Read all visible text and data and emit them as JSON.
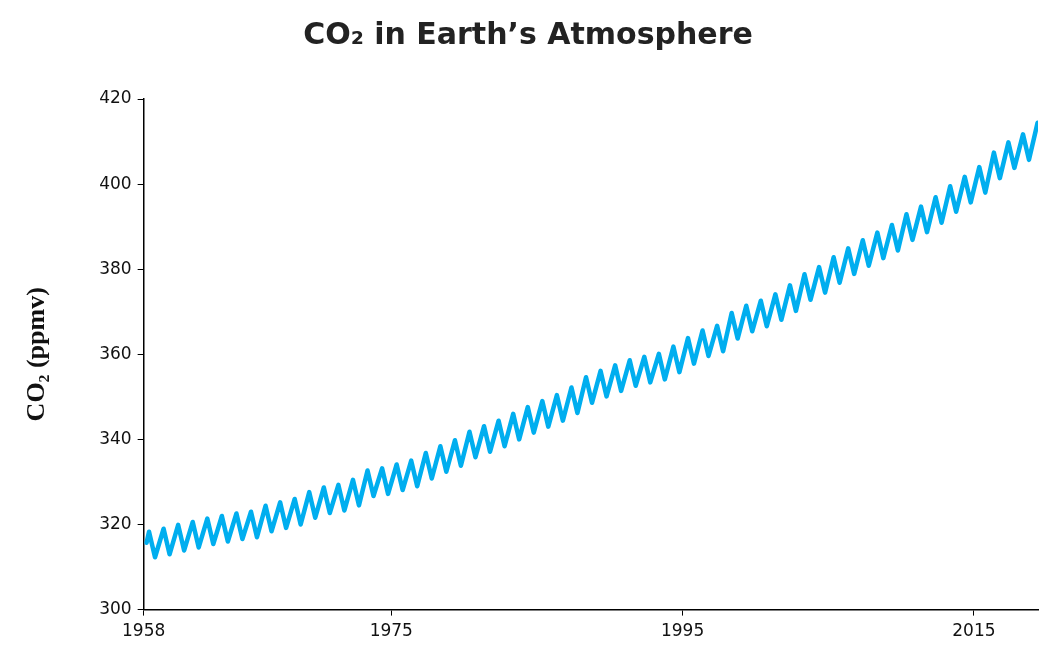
{
  "chart_data": {
    "type": "line",
    "title": "CO₂ in Earth’s Atmosphere",
    "ylabel": "CO₂ (ppmv)",
    "xlim": [
      1958,
      2019.4
    ],
    "xticks": [
      1958,
      1975,
      1995,
      2015
    ],
    "ylim": [
      300,
      420
    ],
    "yticks": [
      300,
      320,
      340,
      360,
      380,
      400,
      420
    ],
    "x": [
      1958.2,
      1958.37,
      1958.78,
      1959.37,
      1959.78,
      1960.37,
      1960.78,
      1961.37,
      1961.78,
      1962.37,
      1962.78,
      1963.37,
      1963.78,
      1964.37,
      1964.78,
      1965.37,
      1965.78,
      1966.37,
      1966.78,
      1967.37,
      1967.78,
      1968.37,
      1968.78,
      1969.37,
      1969.78,
      1970.37,
      1970.78,
      1971.37,
      1971.78,
      1972.37,
      1972.78,
      1973.37,
      1973.78,
      1974.37,
      1974.78,
      1975.37,
      1975.78,
      1976.37,
      1976.78,
      1977.37,
      1977.78,
      1978.37,
      1978.78,
      1979.37,
      1979.78,
      1980.37,
      1980.78,
      1981.37,
      1981.78,
      1982.37,
      1982.78,
      1983.37,
      1983.78,
      1984.37,
      1984.78,
      1985.37,
      1985.78,
      1986.37,
      1986.78,
      1987.37,
      1987.78,
      1988.37,
      1988.78,
      1989.37,
      1989.78,
      1990.37,
      1990.78,
      1991.37,
      1991.78,
      1992.37,
      1992.78,
      1993.37,
      1993.78,
      1994.37,
      1994.78,
      1995.37,
      1995.78,
      1996.37,
      1996.78,
      1997.37,
      1997.78,
      1998.37,
      1998.78,
      1999.37,
      1999.78,
      2000.37,
      2000.78,
      2001.37,
      2001.78,
      2002.37,
      2002.78,
      2003.37,
      2003.78,
      2004.37,
      2004.78,
      2005.37,
      2005.78,
      2006.37,
      2006.78,
      2007.37,
      2007.78,
      2008.37,
      2008.78,
      2009.37,
      2009.78,
      2010.37,
      2010.78,
      2011.37,
      2011.78,
      2012.37,
      2012.78,
      2013.37,
      2013.78,
      2014.37,
      2014.78,
      2015.37,
      2015.78,
      2016.37,
      2016.78,
      2017.37,
      2017.78,
      2018.37,
      2018.78,
      2019.37
    ],
    "series": [
      {
        "color": "#00aeef",
        "values": [
          315.7,
          318.3,
          312.3,
          319.0,
          313.0,
          319.9,
          313.9,
          320.6,
          314.6,
          321.4,
          315.4,
          322.0,
          316.0,
          322.6,
          316.6,
          323.0,
          317.0,
          324.4,
          318.4,
          325.2,
          319.2,
          326.0,
          320.0,
          327.6,
          321.6,
          328.7,
          322.7,
          329.3,
          323.3,
          330.5,
          324.5,
          332.7,
          326.7,
          333.2,
          327.2,
          334.1,
          328.1,
          335.0,
          329.0,
          336.8,
          330.8,
          338.4,
          332.4,
          339.8,
          333.8,
          341.8,
          335.8,
          343.1,
          337.1,
          344.4,
          338.4,
          346.0,
          340.0,
          347.6,
          341.6,
          349.0,
          343.0,
          350.4,
          344.4,
          352.2,
          346.2,
          354.6,
          348.6,
          356.1,
          350.1,
          357.4,
          351.4,
          358.6,
          352.6,
          359.4,
          353.4,
          360.1,
          354.1,
          361.8,
          355.8,
          363.8,
          357.8,
          365.6,
          359.6,
          366.7,
          360.7,
          369.7,
          363.7,
          371.4,
          365.4,
          372.6,
          366.6,
          374.1,
          368.1,
          376.2,
          370.2,
          378.8,
          372.8,
          380.5,
          374.5,
          382.8,
          376.8,
          384.9,
          378.9,
          386.8,
          380.8,
          388.6,
          382.6,
          390.4,
          384.4,
          392.9,
          386.9,
          394.7,
          388.7,
          396.9,
          390.9,
          399.5,
          393.5,
          401.7,
          395.7,
          404.0,
          398.0,
          407.4,
          401.4,
          409.8,
          403.8,
          411.7,
          405.7,
          414.4
        ]
      }
    ]
  }
}
